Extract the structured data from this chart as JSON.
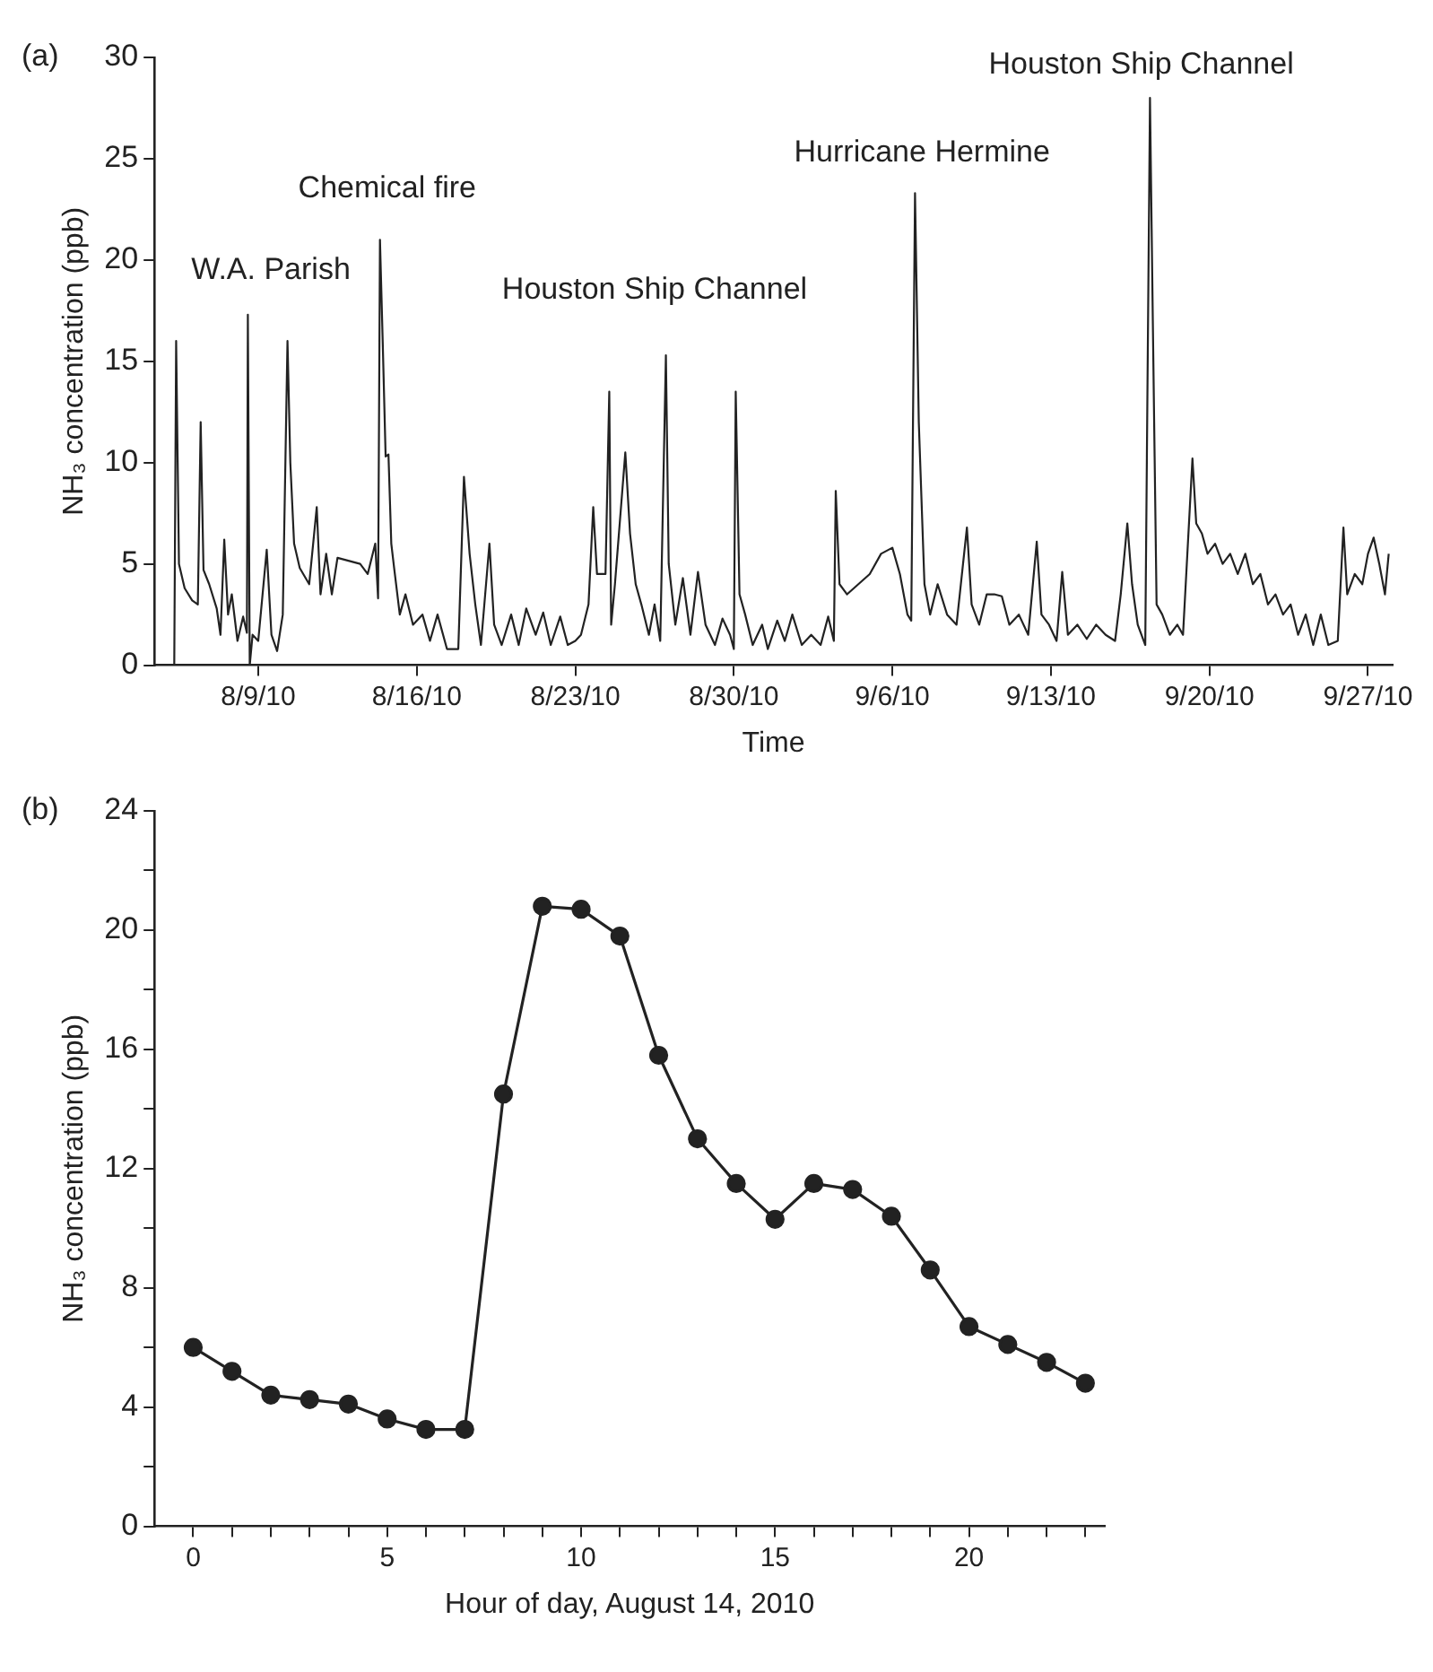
{
  "chart_data": [
    {
      "type": "line",
      "title": "(a)",
      "xlabel": "Time",
      "ylabel": "NH₃ concentration (ppb)",
      "grid": false,
      "marker": "none",
      "line_style": "solid",
      "xlim": [
        "2010-08-04T10:00",
        "2010-09-28T02:00"
      ],
      "ylim": [
        0,
        30
      ],
      "yticks": [
        0,
        5,
        10,
        15,
        20,
        25,
        30
      ],
      "xticks": [
        {
          "value": "2010-08-09",
          "label": "8/9/10"
        },
        {
          "value": "2010-08-16",
          "label": "8/16/10"
        },
        {
          "value": "2010-08-23",
          "label": "8/23/10"
        },
        {
          "value": "2010-08-30",
          "label": "8/30/10"
        },
        {
          "value": "2010-09-06",
          "label": "9/6/10"
        },
        {
          "value": "2010-09-13",
          "label": "9/13/10"
        },
        {
          "value": "2010-09-20",
          "label": "9/20/10"
        },
        {
          "value": "2010-09-27",
          "label": "9/27/10"
        }
      ],
      "annotations": [
        "W.A. Parish",
        "Chemical fire",
        "Houston Ship Channel",
        "Hurricane Hermine",
        "Houston Ship Channel"
      ],
      "series": [
        {
          "color": "#222222",
          "x": [
            "2010-08-05T00:00",
            "2010-08-05T07:00",
            "2010-08-05T09:00",
            "2010-08-05T12:00",
            "2010-08-05T18:00",
            "2010-08-06T02:00",
            "2010-08-06T08:00",
            "2010-08-06T11:00",
            "2010-08-06T14:00",
            "2010-08-06T20:00",
            "2010-08-07T04:00",
            "2010-08-07T08:00",
            "2010-08-07T12:00",
            "2010-08-07T16:00",
            "2010-08-07T20:00",
            "2010-08-08T02:00",
            "2010-08-08T08:00",
            "2010-08-08T12:00",
            "2010-08-08T13:00",
            "2010-08-08T15:00",
            "2010-08-08T18:00",
            "2010-08-09T00:00",
            "2010-08-09T09:00",
            "2010-08-09T14:00",
            "2010-08-09T20:00",
            "2010-08-10T02:00",
            "2010-08-10T07:00",
            "2010-08-10T10:00",
            "2010-08-10T14:00",
            "2010-08-10T20:00",
            "2010-08-11T06:00",
            "2010-08-11T14:00",
            "2010-08-11T18:00",
            "2010-08-12T00:00",
            "2010-08-12T06:00",
            "2010-08-12T12:00",
            "2010-08-13T12:00",
            "2010-08-13T20:00",
            "2010-08-14T04:00",
            "2010-08-14T07:00",
            "2010-08-14T09:00",
            "2010-08-14T12:00",
            "2010-08-14T15:00",
            "2010-08-14T18:00",
            "2010-08-14T21:00",
            "2010-08-15T00:00",
            "2010-08-15T06:00",
            "2010-08-15T12:00",
            "2010-08-15T20:00",
            "2010-08-16T06:00",
            "2010-08-16T14:00",
            "2010-08-16T22:00",
            "2010-08-17T08:00",
            "2010-08-17T20:00",
            "2010-08-18T02:00",
            "2010-08-18T08:00",
            "2010-08-18T14:00",
            "2010-08-18T20:00",
            "2010-08-19T05:00",
            "2010-08-19T10:00",
            "2010-08-19T18:00",
            "2010-08-20T04:00",
            "2010-08-20T12:00",
            "2010-08-20T20:00",
            "2010-08-21T06:00",
            "2010-08-21T14:00",
            "2010-08-21T22:00",
            "2010-08-22T08:00",
            "2010-08-22T16:00",
            "2010-08-23T00:00",
            "2010-08-23T06:00",
            "2010-08-23T14:00",
            "2010-08-23T19:00",
            "2010-08-23T23:00",
            "2010-08-24T08:00",
            "2010-08-24T12:00",
            "2010-08-24T14:00",
            "2010-08-24T18:00",
            "2010-08-25T05:00",
            "2010-08-25T10:00",
            "2010-08-25T16:00",
            "2010-08-25T22:00",
            "2010-08-26T06:00",
            "2010-08-26T12:00",
            "2010-08-26T18:00",
            "2010-08-27T00:00",
            "2010-08-27T03:00",
            "2010-08-27T10:00",
            "2010-08-27T18:00",
            "2010-08-28T02:00",
            "2010-08-28T10:00",
            "2010-08-28T18:00",
            "2010-08-29T04:00",
            "2010-08-29T12:00",
            "2010-08-29T20:00",
            "2010-08-30T00:00",
            "2010-08-30T02:00",
            "2010-08-30T06:00",
            "2010-08-30T12:00",
            "2010-08-30T20:00",
            "2010-08-31T06:00",
            "2010-08-31T12:00",
            "2010-08-31T22:00",
            "2010-09-01T06:00",
            "2010-09-01T14:00",
            "2010-09-02T00:00",
            "2010-09-02T10:00",
            "2010-09-02T20:00",
            "2010-09-03T04:00",
            "2010-09-03T10:00",
            "2010-09-03T12:00",
            "2010-09-03T16:00",
            "2010-09-04T00:00",
            "2010-09-04T12:00",
            "2010-09-05T00:00",
            "2010-09-05T12:00",
            "2010-09-06T00:00",
            "2010-09-06T08:00",
            "2010-09-06T16:00",
            "2010-09-06T20:00",
            "2010-09-07T00:00",
            "2010-09-07T04:00",
            "2010-09-07T10:00",
            "2010-09-07T16:00",
            "2010-09-08T00:00",
            "2010-09-08T10:00",
            "2010-09-08T20:00",
            "2010-09-09T07:00",
            "2010-09-09T12:00",
            "2010-09-09T20:00",
            "2010-09-10T04:00",
            "2010-09-10T12:00",
            "2010-09-10T20:00",
            "2010-09-11T04:00",
            "2010-09-11T14:00",
            "2010-09-12T00:00",
            "2010-09-12T09:00",
            "2010-09-12T14:00",
            "2010-09-12T22:00",
            "2010-09-13T06:00",
            "2010-09-13T12:00",
            "2010-09-13T18:00",
            "2010-09-14T04:00",
            "2010-09-14T14:00",
            "2010-09-15T00:00",
            "2010-09-15T10:00",
            "2010-09-15T20:00",
            "2010-09-16T02:00",
            "2010-09-16T09:00",
            "2010-09-16T14:00",
            "2010-09-16T20:00",
            "2010-09-17T04:00",
            "2010-09-17T09:00",
            "2010-09-17T12:00",
            "2010-09-17T16:00",
            "2010-09-17T22:00",
            "2010-09-18T06:00",
            "2010-09-18T14:00",
            "2010-09-18T20:00",
            "2010-09-19T06:00",
            "2010-09-19T10:00",
            "2010-09-19T16:00",
            "2010-09-19T22:00",
            "2010-09-20T06:00",
            "2010-09-20T14:00",
            "2010-09-20T22:00",
            "2010-09-21T06:00",
            "2010-09-21T14:00",
            "2010-09-21T22:00",
            "2010-09-22T06:00",
            "2010-09-22T14:00",
            "2010-09-22T22:00",
            "2010-09-23T06:00",
            "2010-09-23T14:00",
            "2010-09-23T22:00",
            "2010-09-24T06:00",
            "2010-09-24T14:00",
            "2010-09-24T22:00",
            "2010-09-25T06:00",
            "2010-09-25T16:00",
            "2010-09-25T22:00",
            "2010-09-26T02:00",
            "2010-09-26T10:00",
            "2010-09-26T18:00",
            "2010-09-27T00:00",
            "2010-09-27T06:00",
            "2010-09-27T12:00",
            "2010-09-27T18:00",
            "2010-09-27T22:00"
          ],
          "values": [
            0,
            0,
            16,
            5,
            3.8,
            3.2,
            3,
            12,
            4.7,
            4,
            2.8,
            1.5,
            6.2,
            2.5,
            3.5,
            1.2,
            2.4,
            1.6,
            17.3,
            0,
            1.5,
            1.2,
            5.7,
            1.5,
            0.7,
            2.5,
            16,
            10,
            6,
            4.8,
            4,
            7.8,
            3.5,
            5.5,
            3.5,
            5.3,
            5,
            4.5,
            6,
            3.3,
            21,
            15.8,
            10.3,
            10.4,
            6,
            4.8,
            2.5,
            3.5,
            2,
            2.5,
            1.2,
            2.5,
            0.8,
            0.8,
            9.3,
            5.5,
            3,
            1,
            6,
            2,
            1,
            2.5,
            1,
            2.8,
            1.5,
            2.6,
            1,
            2.4,
            1,
            1.2,
            1.5,
            3,
            7.8,
            4.5,
            4.5,
            13.5,
            2,
            4,
            10.5,
            6.5,
            4,
            3,
            1.5,
            3,
            1.2,
            15.3,
            5,
            2,
            4.3,
            1.5,
            4.6,
            2,
            1,
            2.3,
            1.5,
            0.8,
            13.5,
            3.5,
            2.5,
            1,
            2,
            0.8,
            2.2,
            1.2,
            2.5,
            1,
            1.5,
            1,
            2.4,
            1.2,
            8.6,
            4,
            3.5,
            4,
            4.5,
            5.5,
            5.8,
            4.5,
            2.5,
            2.2,
            23.3,
            12,
            4,
            2.5,
            4,
            2.5,
            2,
            6.8,
            3,
            2,
            3.5,
            3.5,
            3.4,
            2,
            2.5,
            1.5,
            6.1,
            2.5,
            2,
            1.2,
            4.6,
            1.5,
            2,
            1.3,
            2,
            1.5,
            1.2,
            3.5,
            7,
            4,
            2,
            1,
            28,
            17,
            3,
            2.5,
            1.5,
            2,
            1.5,
            10.2,
            7,
            6.5,
            5.5,
            6,
            5,
            5.5,
            4.5,
            5.5,
            4,
            4.5,
            3,
            3.5,
            2.5,
            3,
            1.5,
            2.5,
            1,
            2.5,
            1,
            1.2,
            6.8,
            3.5,
            4.5,
            4,
            5.5,
            6.3,
            5,
            3.5,
            5.5
          ]
        }
      ]
    },
    {
      "type": "line",
      "title": "(b)",
      "xlabel": "Hour of day, August 14, 2010",
      "ylabel": "NH₃ concentration (ppb)",
      "grid": false,
      "marker": "circle",
      "line_style": "solid",
      "xlim": [
        -1,
        23.5
      ],
      "ylim": [
        0,
        24
      ],
      "xticks": [
        0,
        {
          "value": 1,
          "label": null
        },
        {
          "value": 2,
          "label": null
        },
        {
          "value": 3,
          "label": null
        },
        {
          "value": 4,
          "label": null
        },
        5,
        {
          "value": 6,
          "label": null
        },
        {
          "value": 7,
          "label": null
        },
        {
          "value": 8,
          "label": null
        },
        {
          "value": 9,
          "label": null
        },
        10,
        {
          "value": 11,
          "label": null
        },
        {
          "value": 12,
          "label": null
        },
        {
          "value": 13,
          "label": null
        },
        {
          "value": 14,
          "label": null
        },
        15,
        {
          "value": 16,
          "label": null
        },
        {
          "value": 17,
          "label": null
        },
        {
          "value": 18,
          "label": null
        },
        {
          "value": 19,
          "label": null
        },
        20,
        {
          "value": 21,
          "label": null
        },
        {
          "value": 22,
          "label": null
        },
        {
          "value": 23,
          "label": null
        }
      ],
      "yticks": [
        0,
        {
          "value": 2,
          "label": null
        },
        4,
        {
          "value": 6,
          "label": null
        },
        8,
        {
          "value": 10,
          "label": null
        },
        12,
        {
          "value": 14,
          "label": null
        },
        16,
        {
          "value": 18,
          "label": null
        },
        20,
        {
          "value": 22,
          "label": null
        },
        24
      ],
      "series": [
        {
          "color": "#222222",
          "x": [
            0,
            1,
            2,
            3,
            4,
            5,
            6,
            7,
            8,
            9,
            10,
            11,
            12,
            13,
            14,
            15,
            16,
            17,
            18,
            19,
            20,
            21,
            22,
            23
          ],
          "values": [
            6,
            5.2,
            4.4,
            4.25,
            4.1,
            3.6,
            3.25,
            3.25,
            14.5,
            20.8,
            20.7,
            19.8,
            15.8,
            13,
            11.5,
            10.3,
            11.5,
            11.3,
            10.4,
            8.6,
            6.7,
            6.1,
            5.5,
            4.8
          ]
        }
      ]
    }
  ]
}
